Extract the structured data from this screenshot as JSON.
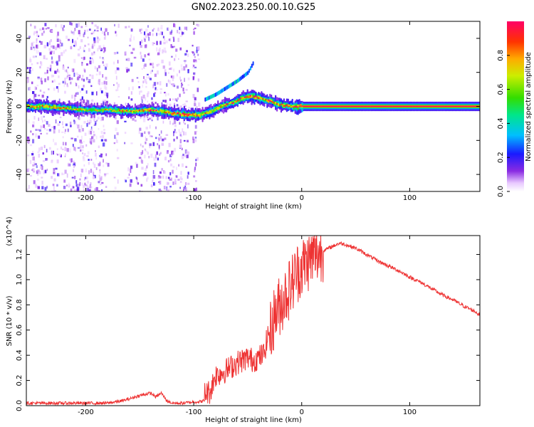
{
  "figure": {
    "title": "GN02.2023.250.00.10.G25"
  },
  "chart_data": [
    {
      "type": "heatmap",
      "xlabel": "Height of straight line (km)",
      "ylabel": "Frequency (Hz)",
      "xlim": [
        -255,
        165
      ],
      "ylim": [
        -50,
        50
      ],
      "xticks": [
        -200,
        -100,
        0,
        100
      ],
      "yticks": [
        -40,
        -20,
        0,
        20,
        40
      ],
      "colorbar": {
        "label": "Normalized spectral amplitude",
        "range": [
          0.0,
          1.0
        ],
        "ticks": [
          "0.0",
          "0.2",
          "0.4",
          "0.6",
          "0.8"
        ],
        "tick_values": [
          0.0,
          0.2,
          0.4,
          0.6,
          0.8
        ],
        "colormap": "rainbow"
      },
      "ridge": {
        "x": [
          -255,
          -240,
          -220,
          -200,
          -180,
          -160,
          -140,
          -120,
          -105,
          -95,
          -85,
          -75,
          -65,
          -55,
          -48,
          -40,
          -30,
          -20,
          -10,
          0,
          50,
          100,
          165
        ],
        "frequency": [
          0,
          0,
          -1,
          -2,
          -2,
          -3,
          -2,
          -4,
          -5,
          -5,
          -3,
          0,
          2,
          5,
          6,
          5,
          3,
          1,
          0,
          0,
          0,
          0,
          0
        ],
        "amplitude": [
          0.5,
          0.6,
          0.4,
          0.3,
          0.4,
          0.5,
          0.6,
          0.55,
          0.9,
          0.5,
          0.4,
          0.5,
          0.6,
          0.65,
          0.7,
          0.6,
          0.65,
          0.6,
          0.7,
          1.0,
          1.0,
          1.0,
          1.0
        ]
      },
      "branch": {
        "x": [
          -90,
          -80,
          -70,
          -60,
          -50,
          -45
        ],
        "frequency": [
          4,
          7,
          11,
          15,
          20,
          26
        ]
      }
    },
    {
      "type": "line",
      "xlabel": "Height of straight line (km)",
      "ylabel": "SNR (10 * v/v)",
      "y_multiplier": "(x10^4)",
      "xlim": [
        -255,
        165
      ],
      "ylim": [
        0,
        1.35
      ],
      "xticks": [
        -200,
        -100,
        0,
        100
      ],
      "yticks": [
        "0.0",
        "0.2",
        "0.4",
        "0.6",
        "0.8",
        "1.0",
        "1.2"
      ],
      "ytick_values": [
        0.0,
        0.2,
        0.4,
        0.6,
        0.8,
        1.0,
        1.2
      ],
      "color": "#ee3333",
      "series": [
        {
          "x": [
            -255,
            -240,
            -220,
            -200,
            -180,
            -165,
            -150,
            -140,
            -135,
            -130,
            -125,
            -120,
            -110,
            -100,
            -95,
            -90,
            -85,
            -80,
            -70,
            -60,
            -50,
            -45,
            -40,
            -35,
            -30,
            -25,
            -20,
            -15,
            -10,
            -5,
            0,
            10,
            20,
            30,
            35,
            40,
            50,
            60,
            70,
            80,
            90,
            100,
            110,
            120,
            130,
            140,
            150,
            160,
            165
          ],
          "y": [
            0.02,
            0.02,
            0.02,
            0.02,
            0.02,
            0.04,
            0.08,
            0.1,
            0.07,
            0.1,
            0.04,
            0.02,
            0.02,
            0.03,
            0.03,
            0.04,
            0.05,
            0.18,
            0.22,
            0.28,
            0.32,
            0.3,
            0.32,
            0.35,
            0.55,
            0.72,
            0.8,
            0.88,
            0.95,
            1.05,
            1.1,
            1.18,
            1.23,
            1.27,
            1.29,
            1.28,
            1.25,
            1.2,
            1.15,
            1.11,
            1.07,
            1.02,
            0.98,
            0.93,
            0.88,
            0.84,
            0.79,
            0.75,
            0.72
          ]
        }
      ]
    }
  ]
}
